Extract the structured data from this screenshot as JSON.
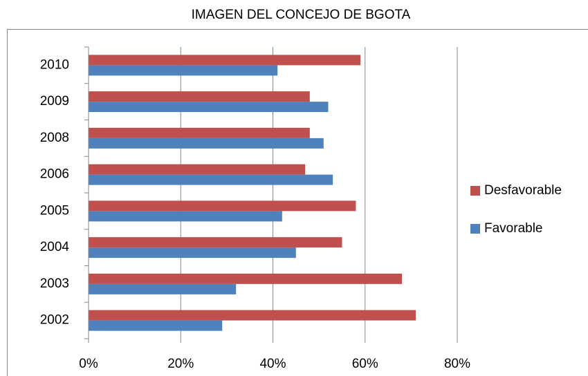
{
  "chart_data": {
    "type": "hbar",
    "title": "IMAGEN DEL CONCEJO DE BGOTA",
    "categories": [
      "2002",
      "2003",
      "2004",
      "2005",
      "2006",
      "2008",
      "2009",
      "2010"
    ],
    "series": [
      {
        "name": "Favorable",
        "color": "#4f81bd",
        "values": [
          29,
          32,
          45,
          42,
          53,
          51,
          52,
          41
        ]
      },
      {
        "name": "Desfavorable",
        "color": "#c0504d",
        "values": [
          71,
          68,
          55,
          58,
          47,
          48,
          48,
          59
        ]
      }
    ],
    "xlim": [
      0,
      80
    ],
    "xticks": [
      {
        "value": 0,
        "label": "0%"
      },
      {
        "value": 20,
        "label": "20%"
      },
      {
        "value": 40,
        "label": "40%"
      },
      {
        "value": 60,
        "label": "60%"
      },
      {
        "value": 80,
        "label": "80%"
      }
    ],
    "grid": true,
    "legend": "right"
  }
}
